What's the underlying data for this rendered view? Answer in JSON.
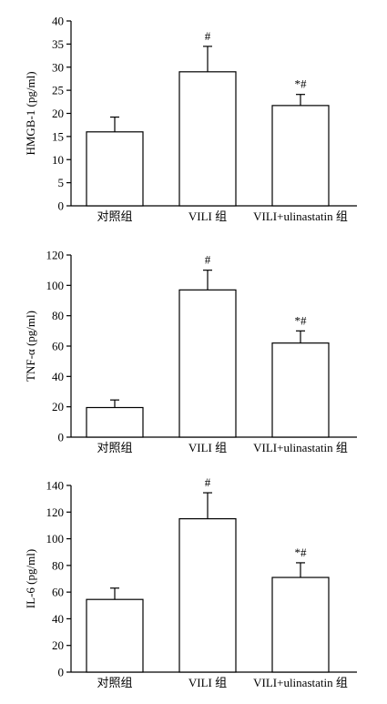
{
  "chart_data": [
    {
      "type": "bar",
      "ylabel": "HMGB-1 (pg/ml)",
      "categories": [
        "对照组",
        "VILI 组",
        "VILI+ulinastatin 组"
      ],
      "values": [
        16,
        29,
        21.7
      ],
      "errors": [
        3.2,
        5.5,
        2.4
      ],
      "annotations": [
        "",
        "#",
        "*#"
      ],
      "ylim": [
        0,
        40
      ],
      "yticks": [
        0,
        5,
        10,
        15,
        20,
        25,
        30,
        35,
        40
      ],
      "grid": false,
      "colors": {
        "bar_fill": "#ffffff",
        "bar_stroke": "#000000"
      }
    },
    {
      "type": "bar",
      "ylabel": "TNF-α (pg/ml)",
      "categories": [
        "对照组",
        "VILI 组",
        "VILI+ulinastatin 组"
      ],
      "values": [
        19.5,
        97,
        62
      ],
      "errors": [
        5,
        13,
        8
      ],
      "annotations": [
        "",
        "#",
        "*#"
      ],
      "ylim": [
        0,
        120
      ],
      "yticks": [
        0,
        20,
        40,
        60,
        80,
        100,
        120
      ],
      "grid": false,
      "colors": {
        "bar_fill": "#ffffff",
        "bar_stroke": "#000000"
      }
    },
    {
      "type": "bar",
      "ylabel": "IL-6 (pg/ml)",
      "categories": [
        "对照组",
        "VILI 组",
        "VILI+ulinastatin 组"
      ],
      "values": [
        54.5,
        115,
        71
      ],
      "errors": [
        8.5,
        19.5,
        11
      ],
      "annotations": [
        "",
        "#",
        "*#"
      ],
      "ylim": [
        0,
        140
      ],
      "yticks": [
        0,
        20,
        40,
        60,
        80,
        100,
        120,
        140
      ],
      "grid": false,
      "colors": {
        "bar_fill": "#ffffff",
        "bar_stroke": "#000000"
      }
    }
  ]
}
